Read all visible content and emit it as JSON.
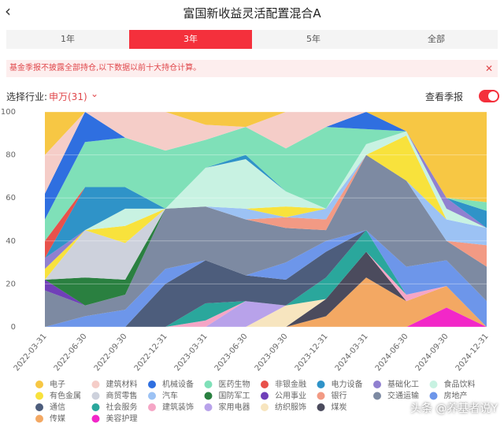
{
  "header": {
    "title": "富国新收益灵活配置混合A"
  },
  "tabs": [
    "1年",
    "3年",
    "5年",
    "全部"
  ],
  "notice": "基金季报不披露全部持仓,以下数据以前十大持仓计算。",
  "industry_label": "选择行业:",
  "industry_value": "申万(31)",
  "toggle_label": "查看季报",
  "chart_data": {
    "type": "stacked_area",
    "categories": [
      "2022-03-31",
      "2022-06-30",
      "2022-09-30",
      "2022-12-31",
      "2023-03-31",
      "2023-06-30",
      "2023-09-30",
      "2023-12-31",
      "2024-03-31",
      "2024-06-30",
      "2024-09-30",
      "2024-12-31"
    ],
    "ylim": [
      0,
      100
    ],
    "yticks": [
      0,
      20,
      40,
      60,
      80,
      100
    ],
    "grid": true,
    "series": [
      {
        "name": "电子",
        "color": "#f7c744",
        "values": [
          20,
          0,
          0,
          0,
          6,
          7,
          0,
          0,
          0,
          9,
          40,
          42
        ]
      },
      {
        "name": "建筑材料",
        "color": "#f5cdc8",
        "values": [
          18,
          0,
          12,
          18,
          7,
          0,
          17,
          7,
          0,
          0,
          0,
          0
        ]
      },
      {
        "name": "机械设备",
        "color": "#2f6fe0",
        "values": [
          12,
          14,
          0,
          0,
          0,
          0,
          0,
          0,
          8,
          0,
          0,
          0
        ]
      },
      {
        "name": "医药生物",
        "color": "#7fe0b8",
        "values": [
          10,
          21,
          23,
          27,
          13,
          13,
          20,
          38,
          7,
          0,
          0,
          4
        ]
      },
      {
        "name": "非银金融",
        "color": "#e8514b",
        "values": [
          8,
          0,
          0,
          0,
          0,
          0,
          0,
          0,
          0,
          0,
          0,
          0
        ]
      },
      {
        "name": "电力设备",
        "color": "#2f93c8",
        "values": [
          0,
          20,
          10,
          0,
          0,
          2,
          0,
          0,
          0,
          0,
          0,
          8
        ]
      },
      {
        "name": "基础化工",
        "color": "#9080d0",
        "values": [
          5,
          0,
          0,
          0,
          0,
          0,
          0,
          0,
          0,
          0,
          5,
          0
        ]
      },
      {
        "name": "食品饮料",
        "color": "#c8f2e2",
        "values": [
          0,
          0,
          8,
          0,
          18,
          23,
          7,
          0,
          5,
          2,
          5,
          0
        ]
      },
      {
        "name": "有色金属",
        "color": "#f8e23c",
        "values": [
          5,
          0,
          8,
          0,
          0,
          0,
          5,
          0,
          0,
          21,
          0,
          0
        ]
      },
      {
        "name": "商贸零售",
        "color": "#cdd1dc",
        "values": [
          0,
          22,
          17,
          0,
          0,
          0,
          0,
          0,
          0,
          0,
          0,
          0
        ]
      },
      {
        "name": "汽车",
        "color": "#9cc2f4",
        "values": [
          0,
          0,
          0,
          0,
          0,
          5,
          0,
          5,
          0,
          0,
          10,
          8
        ]
      },
      {
        "name": "国防军工",
        "color": "#2a8040",
        "values": [
          0,
          13,
          7,
          0,
          0,
          0,
          0,
          0,
          0,
          0,
          0,
          0
        ]
      },
      {
        "name": "公用事业",
        "color": "#7040b8",
        "values": [
          5,
          0,
          0,
          0,
          0,
          0,
          0,
          0,
          0,
          0,
          0,
          0
        ]
      },
      {
        "name": "银行",
        "color": "#f29a84",
        "values": [
          0,
          0,
          0,
          0,
          0,
          0,
          5,
          5,
          0,
          0,
          0,
          10
        ]
      },
      {
        "name": "交通运输",
        "color": "#7d8aa2",
        "values": [
          17,
          5,
          7,
          28,
          25,
          26,
          16,
          5,
          35,
          40,
          9,
          16
        ]
      },
      {
        "name": "房地产",
        "color": "#6d96ea",
        "values": [
          0,
          5,
          8,
          7,
          0,
          0,
          8,
          5,
          0,
          13,
          12,
          12
        ]
      },
      {
        "name": "通信",
        "color": "#4d5d7c",
        "values": [
          0,
          0,
          0,
          20,
          20,
          12,
          12,
          12,
          0,
          0,
          0,
          0
        ]
      },
      {
        "name": "社会服务",
        "color": "#2aa79c",
        "values": [
          0,
          0,
          0,
          0,
          8,
          0,
          0,
          10,
          10,
          0,
          0,
          0
        ]
      },
      {
        "name": "建筑装饰",
        "color": "#f5a6c6",
        "values": [
          0,
          0,
          0,
          0,
          3,
          0,
          0,
          0,
          0,
          3,
          0,
          0
        ]
      },
      {
        "name": "家用电器",
        "color": "#b8a2ea",
        "values": [
          0,
          0,
          0,
          0,
          0,
          12,
          0,
          0,
          0,
          0,
          0,
          0
        ]
      },
      {
        "name": "纺织服饰",
        "color": "#f7e5bf",
        "values": [
          0,
          0,
          0,
          0,
          0,
          0,
          10,
          0,
          0,
          0,
          0,
          0
        ]
      },
      {
        "name": "煤炭",
        "color": "#4b4b5d",
        "values": [
          0,
          0,
          0,
          0,
          0,
          0,
          0,
          8,
          12,
          0,
          0,
          0
        ]
      },
      {
        "name": "传媒",
        "color": "#f3a863",
        "values": [
          0,
          0,
          0,
          0,
          0,
          0,
          0,
          5,
          23,
          12,
          10,
          0
        ]
      },
      {
        "name": "美容护理",
        "color": "#f227c8",
        "values": [
          0,
          0,
          0,
          0,
          0,
          0,
          0,
          0,
          0,
          0,
          9,
          0
        ]
      }
    ]
  },
  "watermark": "头条 @养基者说Y"
}
